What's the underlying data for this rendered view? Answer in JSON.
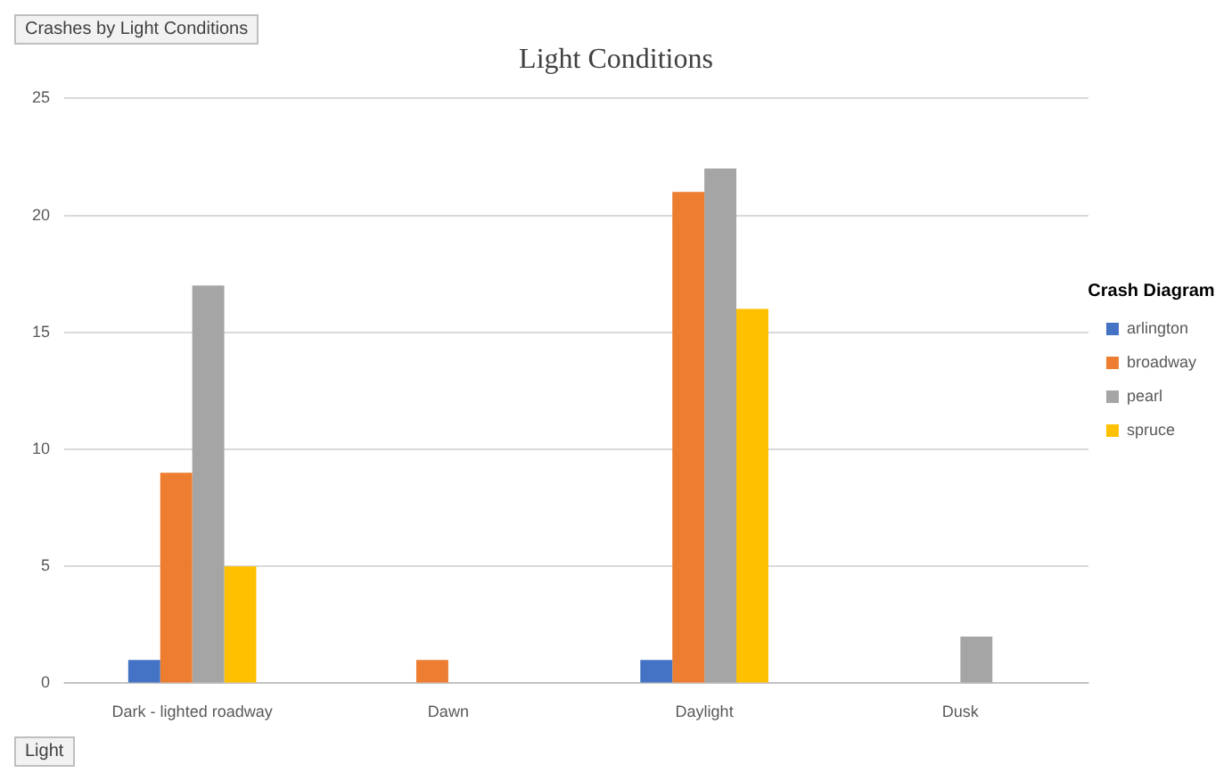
{
  "chart_data": {
    "type": "bar",
    "title": "Light Conditions",
    "legend_title": "Crash Diagram",
    "categories": [
      "Dark - lighted roadway",
      "Dawn",
      "Daylight",
      "Dusk"
    ],
    "series": [
      {
        "name": "arlington",
        "color": "#4472c4",
        "values": [
          1,
          null,
          1,
          null
        ]
      },
      {
        "name": "broadway",
        "color": "#ed7d31",
        "values": [
          9,
          1,
          21,
          null
        ]
      },
      {
        "name": "pearl",
        "color": "#a5a5a5",
        "values": [
          17,
          null,
          22,
          2
        ]
      },
      {
        "name": "spruce",
        "color": "#ffc000",
        "values": [
          5,
          null,
          16,
          null
        ]
      }
    ],
    "ylim": [
      0,
      25
    ],
    "yticks": [
      0,
      5,
      10,
      15,
      20,
      25
    ],
    "grid": "y",
    "legend": "right",
    "annotations": [
      "Crashes by Light Conditions",
      "Light"
    ]
  }
}
